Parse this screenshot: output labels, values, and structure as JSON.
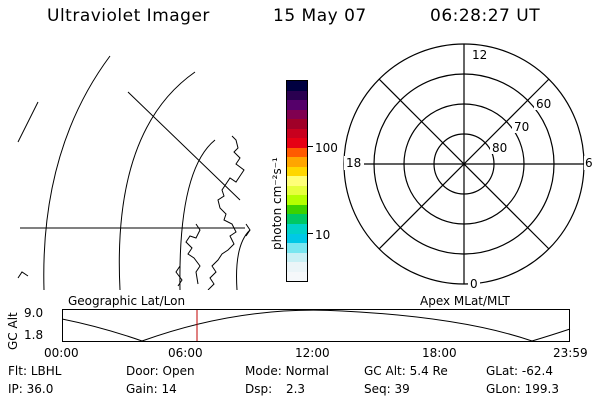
{
  "header": {
    "instrument": "Ultraviolet Imager",
    "date": "15 May 07",
    "time": "06:28:27 UT"
  },
  "colorbar": {
    "unit_label": "photon cm⁻²s⁻¹",
    "tick_labels": [
      "100",
      "10"
    ],
    "colors": [
      "#000040",
      "#2a0050",
      "#55006a",
      "#800050",
      "#a00028",
      "#c8001e",
      "#e60014",
      "#ff5a00",
      "#ffa500",
      "#ffd700",
      "#ffff78",
      "#e6ff3c",
      "#b4ff00",
      "#3cd200",
      "#00c864",
      "#00d2c8",
      "#00c8e6",
      "#78e6f0",
      "#c8f0f5",
      "#ebf5f8",
      "#f5f8fa"
    ]
  },
  "polar_plot": {
    "mlt_labels": {
      "top": "12",
      "bottom": "0",
      "left": "18",
      "right": "6"
    },
    "lat_labels": [
      "60",
      "70",
      "80"
    ]
  },
  "left_map": {
    "label": "Geographic Lat/Lon"
  },
  "right_map": {
    "label": "Apex MLat/MLT"
  },
  "altitude_plot": {
    "ylabel": "GC Alt",
    "yticks": [
      "9.0",
      "1.8"
    ],
    "xticks": [
      "00:00",
      "06:00",
      "12:00",
      "18:00",
      "23:59"
    ],
    "current_time_marker": "06:28"
  },
  "info": {
    "row1": [
      {
        "label": "Flt:",
        "value": "LBHL"
      },
      {
        "label": "Door:",
        "value": "Open"
      },
      {
        "label": "Mode:",
        "value": "Normal"
      },
      {
        "label": "GC Alt:",
        "value": "5.4 Re"
      },
      {
        "label": "GLat:",
        "value": "-62.4"
      }
    ],
    "row2": [
      {
        "label": "IP:",
        "value": "36.0"
      },
      {
        "label": "Gain:",
        "value": "14"
      },
      {
        "label": "Dsp:",
        "value": "2.3"
      },
      {
        "label": "Seq:",
        "value": "39"
      },
      {
        "label": "GLon:",
        "value": "199.3"
      }
    ]
  }
}
